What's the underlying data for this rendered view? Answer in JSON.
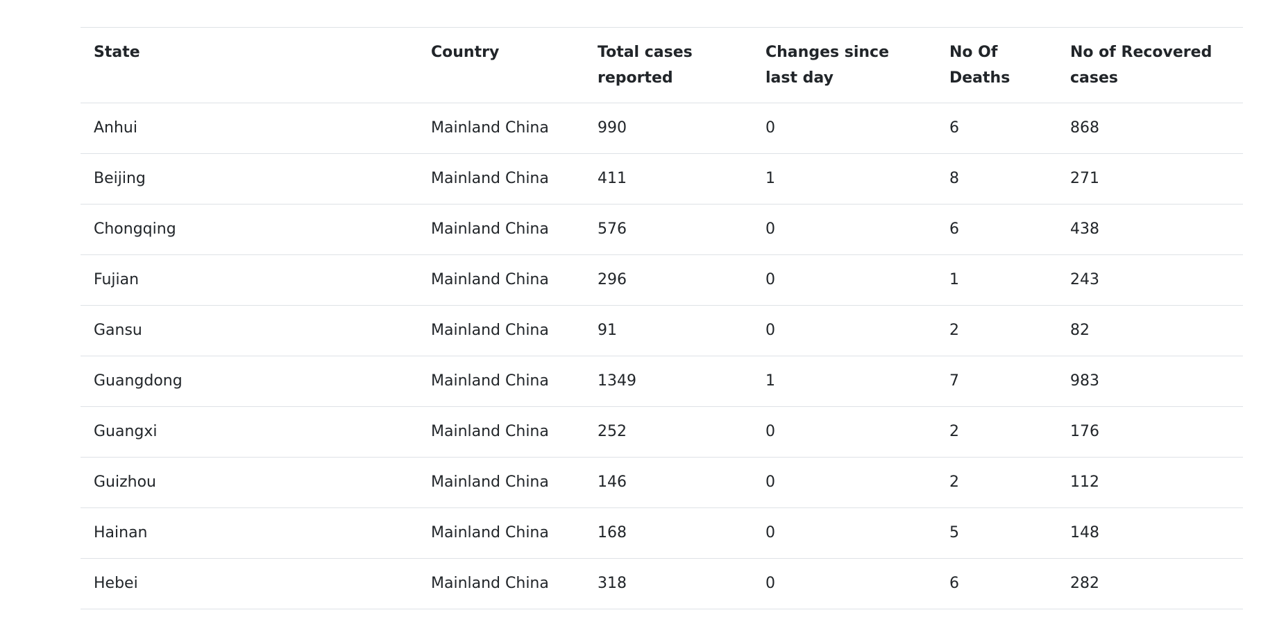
{
  "table": {
    "headers": [
      "State",
      "Country",
      "Total cases reported",
      "Changes since last day",
      "No Of Deaths",
      "No of Recovered cases"
    ],
    "rows": [
      [
        "Anhui",
        "Mainland China",
        "990",
        "0",
        "6",
        "868"
      ],
      [
        "Beijing",
        "Mainland China",
        "411",
        "1",
        "8",
        "271"
      ],
      [
        "Chongqing",
        "Mainland China",
        "576",
        "0",
        "6",
        "438"
      ],
      [
        "Fujian",
        "Mainland China",
        "296",
        "0",
        "1",
        "243"
      ],
      [
        "Gansu",
        "Mainland China",
        "91",
        "0",
        "2",
        "82"
      ],
      [
        "Guangdong",
        "Mainland China",
        "1349",
        "1",
        "7",
        "983"
      ],
      [
        "Guangxi",
        "Mainland China",
        "252",
        "0",
        "2",
        "176"
      ],
      [
        "Guizhou",
        "Mainland China",
        "146",
        "0",
        "2",
        "112"
      ],
      [
        "Hainan",
        "Mainland China",
        "168",
        "0",
        "5",
        "148"
      ],
      [
        "Hebei",
        "Mainland China",
        "318",
        "0",
        "6",
        "282"
      ]
    ]
  }
}
